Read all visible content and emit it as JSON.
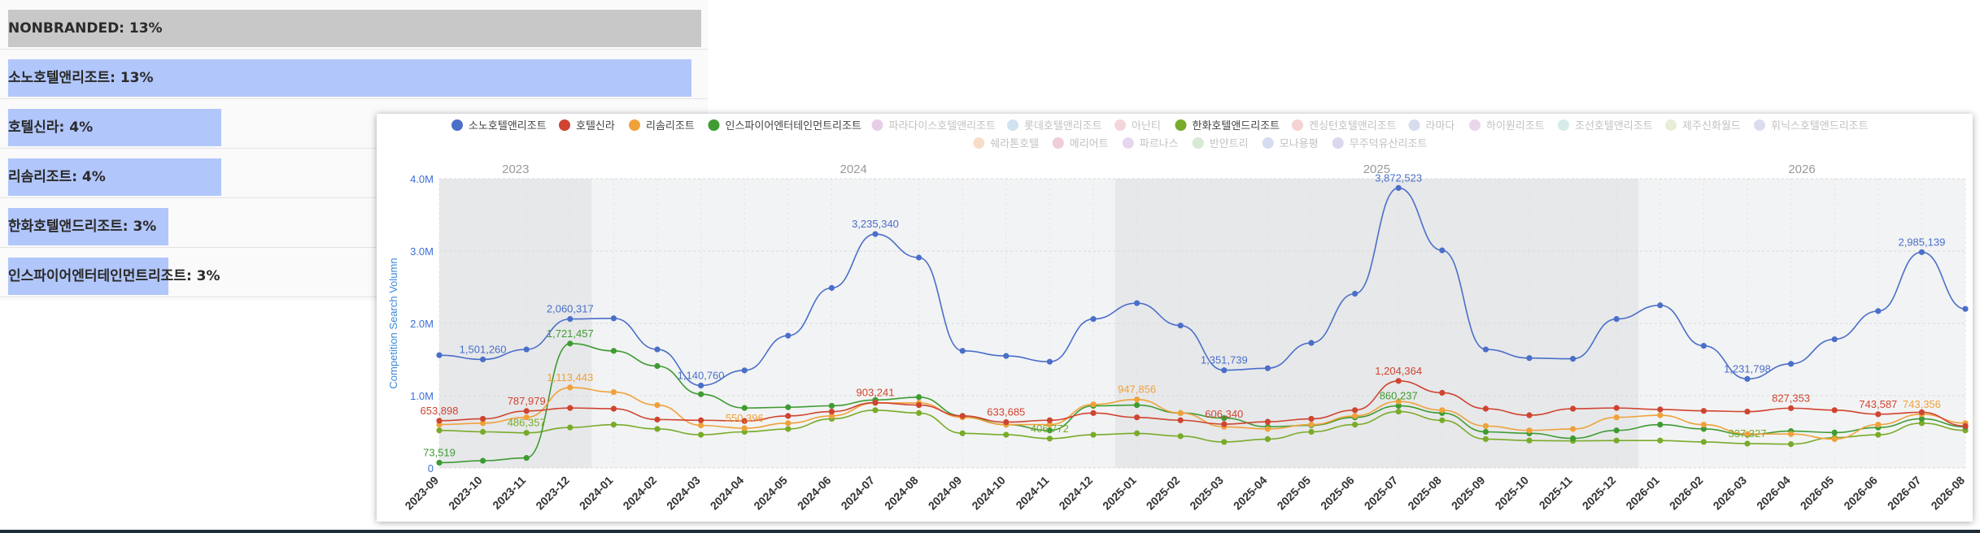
{
  "share_bars": [
    {
      "label": "NONBRANDED: 13%",
      "value": 13,
      "color": "#c8c8c8"
    },
    {
      "label": "소노호텔앤리조트: 13%",
      "value": 13,
      "color": "#b1c6fb"
    },
    {
      "label": "호텔신라: 4%",
      "value": 4,
      "color": "#b1c6fb"
    },
    {
      "label": "리솜리조트: 4%",
      "value": 4,
      "color": "#b1c6fb"
    },
    {
      "label": "한화호텔앤드리조트: 3%",
      "value": 3,
      "color": "#b1c6fb"
    },
    {
      "label": "인스파이어엔터테인먼트리조트: 3%",
      "value": 3,
      "color": "#b1c6fb"
    }
  ],
  "chart_data": {
    "type": "line",
    "title": "",
    "ylabel": "Competition Search Volumn",
    "ylim": [
      0,
      4000000
    ],
    "yticks": [
      "0",
      "1.0M",
      "2.0M",
      "3.0M",
      "4.0M"
    ],
    "years": [
      {
        "label": "2023",
        "start": 0,
        "end": 3.5
      },
      {
        "label": "2024",
        "start": 3.5,
        "end": 15.5
      },
      {
        "label": "2025",
        "start": 15.5,
        "end": 27.5
      },
      {
        "label": "2026",
        "start": 27.5,
        "end": 35
      }
    ],
    "x": [
      "2023-09",
      "2023-10",
      "2023-11",
      "2023-12",
      "2024-01",
      "2024-02",
      "2024-03",
      "2024-04",
      "2024-05",
      "2024-06",
      "2024-07",
      "2024-08",
      "2024-09",
      "2024-10",
      "2024-11",
      "2024-12",
      "2025-01",
      "2025-02",
      "2025-03",
      "2025-04",
      "2025-05",
      "2025-06",
      "2025-07",
      "2025-08",
      "2025-09",
      "2025-10",
      "2025-11",
      "2025-12",
      "2026-01",
      "2026-02",
      "2026-03",
      "2026-04",
      "2026-05",
      "2026-06",
      "2026-07",
      "2026-08"
    ],
    "grid": true,
    "legend": "top",
    "legend_items": [
      {
        "name": "소노호텔앤리조트",
        "color": "#4a6fc9",
        "active": true
      },
      {
        "name": "호텔신라",
        "color": "#cf4430",
        "active": true
      },
      {
        "name": "리솜리조트",
        "color": "#efa23a",
        "active": true
      },
      {
        "name": "인스파이어엔터테인먼트리조트",
        "color": "#3f9b33",
        "active": true
      },
      {
        "name": "파라다이스호텔앤리조트",
        "color": "#e8cde8",
        "active": false
      },
      {
        "name": "롯데호텔앤리조트",
        "color": "#cfe3ef",
        "active": false
      },
      {
        "name": "아난티",
        "color": "#f5d5dc",
        "active": false
      },
      {
        "name": "한화호텔앤드리조트",
        "color": "#79ab2a",
        "active": true
      },
      {
        "name": "켄싱턴호텔앤리조트",
        "color": "#f3d3d3",
        "active": false
      },
      {
        "name": "라마다",
        "color": "#d7dcef",
        "active": false
      },
      {
        "name": "하이원리조트",
        "color": "#ead6ea",
        "active": false
      },
      {
        "name": "조선호텔앤리조트",
        "color": "#d6ebe8",
        "active": false
      },
      {
        "name": "제주신화월드",
        "color": "#e6efd6",
        "active": false
      },
      {
        "name": "휘닉스호텔앤드리조트",
        "color": "#dcdcef",
        "active": false
      },
      {
        "name": "쉐라톤호텔",
        "color": "#f8dcca",
        "active": false
      },
      {
        "name": "메리어트",
        "color": "#f0cdd8",
        "active": false
      },
      {
        "name": "파르나스",
        "color": "#e6d6ee",
        "active": false
      },
      {
        "name": "반얀트리",
        "color": "#d6ead6",
        "active": false
      },
      {
        "name": "모나용평",
        "color": "#d6dcef",
        "active": false
      },
      {
        "name": "무주덕유산리조트",
        "color": "#ddd6ef",
        "active": false
      }
    ],
    "series": [
      {
        "name": "소노호텔앤리조트",
        "color": "#4a6fc9",
        "values": [
          1560000,
          1501260,
          1640000,
          2060317,
          2070000,
          1640000,
          1140760,
          1350000,
          1830000,
          2490000,
          3235340,
          2910000,
          1620000,
          1550000,
          1470000,
          2060000,
          2280000,
          1970000,
          1351739,
          1380000,
          1730000,
          2410000,
          3872523,
          3010000,
          1640000,
          1520000,
          1510000,
          2060000,
          2250000,
          1690000,
          1231798,
          1440000,
          1780000,
          2170000,
          2985139,
          2200000
        ]
      },
      {
        "name": "호텔신라",
        "color": "#cf4430",
        "values": [
          653898,
          680000,
          787979,
          830000,
          820000,
          670000,
          660000,
          650000,
          720000,
          780000,
          903241,
          870000,
          720000,
          633685,
          660000,
          760000,
          700000,
          660000,
          606340,
          640000,
          680000,
          800000,
          1204364,
          1040000,
          820000,
          730000,
          820000,
          830000,
          810000,
          790000,
          780000,
          827353,
          800000,
          743587,
          770000,
          580000
        ]
      },
      {
        "name": "리솜리조트",
        "color": "#efa23a",
        "values": [
          600000,
          620000,
          700000,
          1113443,
          1050000,
          870000,
          590000,
          550396,
          620000,
          720000,
          900000,
          900000,
          700000,
          600000,
          600000,
          880000,
          947856,
          760000,
          570000,
          540000,
          600000,
          720000,
          920000,
          800000,
          580000,
          520000,
          540000,
          700000,
          730000,
          600000,
          470000,
          470000,
          400000,
          600000,
          743356,
          620000
        ]
      },
      {
        "name": "인스파이어엔터테인먼트리조트",
        "color": "#3f9b33",
        "values": [
          73519,
          100000,
          140000,
          1721457,
          1620000,
          1410000,
          1020000,
          830000,
          840000,
          860000,
          940000,
          980000,
          720000,
          600000,
          520000,
          860000,
          870000,
          760000,
          690000,
          570000,
          590000,
          700000,
          860237,
          760000,
          500000,
          480000,
          410000,
          520000,
          600000,
          540000,
          460000,
          510000,
          490000,
          560000,
          680000,
          570000
        ]
      },
      {
        "name": "한화호텔앤드리조트",
        "color": "#79ab2a",
        "values": [
          520000,
          500000,
          486357,
          560000,
          600000,
          540000,
          460000,
          500000,
          540000,
          680000,
          800000,
          760000,
          480000,
          460000,
          406772,
          460000,
          480000,
          440000,
          360000,
          400000,
          500000,
          600000,
          780000,
          660000,
          400000,
          380000,
          375000,
          380000,
          380000,
          360000,
          337327,
          330000,
          420000,
          460000,
          620000,
          520000
        ]
      }
    ],
    "data_labels": [
      {
        "series": 0,
        "index": 1,
        "text": "1,501,260"
      },
      {
        "series": 0,
        "index": 3,
        "text": "2,060,317"
      },
      {
        "series": 0,
        "index": 6,
        "text": "1,140,760"
      },
      {
        "series": 0,
        "index": 10,
        "text": "3,235,340"
      },
      {
        "series": 0,
        "index": 18,
        "text": "1,351,739"
      },
      {
        "series": 0,
        "index": 22,
        "text": "3,872,523"
      },
      {
        "series": 0,
        "index": 30,
        "text": "1,231,798"
      },
      {
        "series": 0,
        "index": 34,
        "text": "2,985,139"
      },
      {
        "series": 1,
        "index": 0,
        "text": "653,898"
      },
      {
        "series": 1,
        "index": 2,
        "text": "787,979"
      },
      {
        "series": 1,
        "index": 10,
        "text": "903,241"
      },
      {
        "series": 1,
        "index": 13,
        "text": "633,685"
      },
      {
        "series": 1,
        "index": 18,
        "text": "606,340"
      },
      {
        "series": 1,
        "index": 22,
        "text": "1,204,364"
      },
      {
        "series": 1,
        "index": 31,
        "text": "827,353"
      },
      {
        "series": 1,
        "index": 33,
        "text": "743,587"
      },
      {
        "series": 2,
        "index": 3,
        "text": "1,113,443"
      },
      {
        "series": 2,
        "index": 7,
        "text": "550,396"
      },
      {
        "series": 2,
        "index": 16,
        "text": "947,856"
      },
      {
        "series": 2,
        "index": 34,
        "text": "743,356"
      },
      {
        "series": 3,
        "index": 0,
        "text": "73,519"
      },
      {
        "series": 3,
        "index": 3,
        "text": "1,721,457"
      },
      {
        "series": 3,
        "index": 22,
        "text": "860,237"
      },
      {
        "series": 4,
        "index": 2,
        "text": "486,357"
      },
      {
        "series": 4,
        "index": 14,
        "text": "406,772"
      },
      {
        "series": 4,
        "index": 30,
        "text": "337,327"
      }
    ]
  }
}
